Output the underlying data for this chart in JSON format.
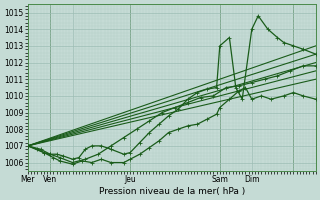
{
  "xlabel": "Pression niveau de la mer( hPa )",
  "bg_color": "#c5dbd5",
  "grid_color_major": "#9dbdb5",
  "grid_color_minor": "#b5cfc8",
  "line_color": "#1a5c1a",
  "ylim": [
    1005.5,
    1015.5
  ],
  "xlim": [
    0,
    9.0
  ],
  "yticks": [
    1006,
    1007,
    1008,
    1009,
    1010,
    1011,
    1012,
    1013,
    1014,
    1015
  ],
  "xtick_positions": [
    0.0,
    0.7,
    1.4,
    3.2,
    6.0,
    7.0,
    8.3
  ],
  "xtick_labels": [
    "Mer",
    "Ven",
    "",
    "Jeu",
    "Sam",
    "Dim",
    ""
  ],
  "vlines": [
    0.7,
    3.2,
    6.0,
    8.3
  ],
  "lines": [
    {
      "x": [
        0.0,
        0.3,
        0.5,
        0.7,
        0.9,
        1.1,
        1.4,
        1.6,
        1.8,
        2.0,
        2.3,
        2.6,
        3.0,
        3.2,
        3.5,
        3.8,
        4.1,
        4.4,
        4.7,
        5.0,
        5.3,
        5.6,
        5.9,
        6.0,
        6.3,
        6.5,
        6.7,
        7.0,
        7.2,
        7.5,
        7.8,
        8.0,
        8.3,
        8.6,
        9.0
      ],
      "y": [
        1007.0,
        1006.8,
        1006.6,
        1006.5,
        1006.5,
        1006.4,
        1006.2,
        1006.3,
        1006.8,
        1007.0,
        1007.0,
        1006.8,
        1006.5,
        1006.6,
        1007.2,
        1007.8,
        1008.3,
        1008.8,
        1009.2,
        1009.8,
        1010.2,
        1010.4,
        1010.5,
        1013.0,
        1013.5,
        1010.5,
        1009.8,
        1014.0,
        1014.8,
        1014.0,
        1013.5,
        1013.2,
        1013.0,
        1012.8,
        1012.5
      ],
      "marker": true,
      "lw": 0.9
    },
    {
      "x": [
        0.0,
        9.0
      ],
      "y": [
        1007.0,
        1012.0
      ],
      "marker": false,
      "lw": 0.8
    },
    {
      "x": [
        0.0,
        9.0
      ],
      "y": [
        1007.0,
        1012.5
      ],
      "marker": false,
      "lw": 0.8
    },
    {
      "x": [
        0.0,
        9.0
      ],
      "y": [
        1007.0,
        1013.0
      ],
      "marker": false,
      "lw": 0.8
    },
    {
      "x": [
        0.0,
        9.0
      ],
      "y": [
        1007.0,
        1011.5
      ],
      "marker": false,
      "lw": 0.8
    },
    {
      "x": [
        0.0,
        9.0
      ],
      "y": [
        1007.0,
        1011.0
      ],
      "marker": false,
      "lw": 0.8
    },
    {
      "x": [
        0.0,
        0.5,
        0.8,
        1.0,
        1.4,
        1.7,
        2.0,
        2.3,
        2.6,
        3.0,
        3.2,
        3.5,
        3.8,
        4.1,
        4.4,
        4.7,
        5.0,
        5.3,
        5.6,
        5.9,
        6.0,
        6.3,
        6.6,
        6.8,
        7.0,
        7.3,
        7.6,
        8.0,
        8.3,
        8.6,
        9.0
      ],
      "y": [
        1007.0,
        1006.6,
        1006.3,
        1006.1,
        1005.9,
        1006.1,
        1006.0,
        1006.2,
        1006.0,
        1006.0,
        1006.2,
        1006.5,
        1006.9,
        1007.3,
        1007.8,
        1008.0,
        1008.2,
        1008.3,
        1008.6,
        1008.9,
        1009.3,
        1009.8,
        1010.3,
        1010.5,
        1009.8,
        1010.0,
        1009.8,
        1010.0,
        1010.2,
        1010.0,
        1009.8
      ],
      "marker": true,
      "lw": 0.9
    },
    {
      "x": [
        0.0,
        0.4,
        0.7,
        1.0,
        1.4,
        1.8,
        2.2,
        2.6,
        3.0,
        3.4,
        3.8,
        4.2,
        4.6,
        5.0,
        5.4,
        5.8,
        6.2,
        6.6,
        7.0,
        7.4,
        7.8,
        8.2,
        8.6,
        9.0
      ],
      "y": [
        1007.0,
        1006.8,
        1006.5,
        1006.3,
        1006.0,
        1006.2,
        1006.5,
        1007.0,
        1007.5,
        1008.0,
        1008.5,
        1009.0,
        1009.3,
        1009.6,
        1009.9,
        1010.0,
        1010.5,
        1010.6,
        1010.8,
        1011.0,
        1011.2,
        1011.5,
        1011.8,
        1011.8
      ],
      "marker": true,
      "lw": 0.9
    }
  ]
}
